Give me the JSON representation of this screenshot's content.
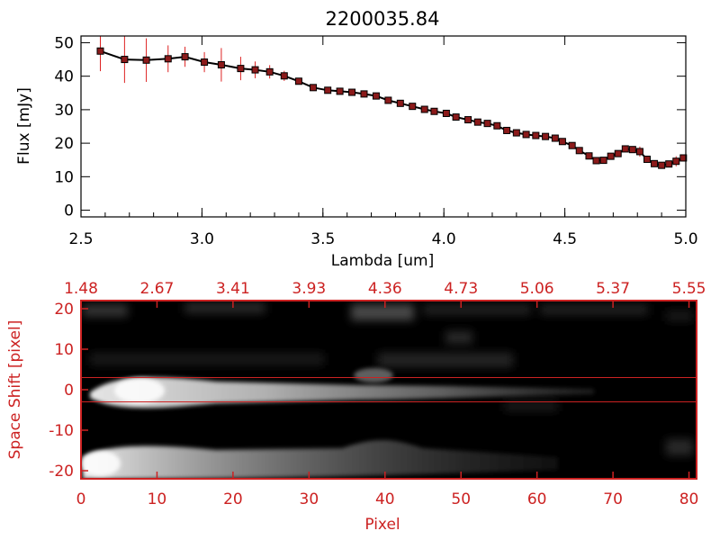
{
  "colors": {
    "spectrum_line": "#000000",
    "marker_fill": "#8b1a1a",
    "error_bar": "#dd2222",
    "image_frame": "#cc2222",
    "image_axis_text": "#cc2222",
    "image_background": "#000000"
  },
  "chart_data": [
    {
      "type": "line",
      "title": "2200035.84",
      "xlabel": "Lambda [um]",
      "ylabel": "Flux [mJy]",
      "xlim": [
        2.5,
        5.0
      ],
      "ylim": [
        -2,
        52
      ],
      "xticks": [
        2.5,
        3.0,
        3.5,
        4.0,
        4.5,
        5.0
      ],
      "xtick_labels": [
        "2.5",
        "3.0",
        "3.5",
        "4.0",
        "4.5",
        "5.0"
      ],
      "yticks": [
        0,
        10,
        20,
        30,
        40,
        50
      ],
      "ytick_labels": [
        "0",
        "10",
        "20",
        "30",
        "40",
        "50"
      ],
      "grid": false,
      "series": [
        {
          "x": [
            2.58,
            2.68,
            2.77,
            2.86,
            2.93,
            3.01,
            3.08,
            3.16,
            3.22,
            3.28,
            3.34,
            3.4,
            3.46,
            3.52,
            3.57,
            3.62,
            3.67,
            3.72,
            3.77,
            3.82,
            3.87,
            3.92,
            3.96,
            4.01,
            4.05,
            4.1,
            4.14,
            4.18,
            4.22,
            4.26,
            4.3,
            4.34,
            4.38,
            4.42,
            4.46,
            4.49,
            4.53,
            4.56,
            4.6,
            4.63,
            4.66,
            4.69,
            4.72,
            4.75,
            4.78,
            4.81,
            4.84,
            4.87,
            4.9,
            4.93,
            4.96,
            4.99
          ],
          "y": [
            47.5,
            45.0,
            44.8,
            45.2,
            45.8,
            44.2,
            43.4,
            42.3,
            41.9,
            41.3,
            40.1,
            38.5,
            36.6,
            35.8,
            35.5,
            35.2,
            34.7,
            34.1,
            32.8,
            31.9,
            31.0,
            30.1,
            29.5,
            28.9,
            27.8,
            27.0,
            26.3,
            25.9,
            25.2,
            23.8,
            23.1,
            22.6,
            22.3,
            22.0,
            21.5,
            20.5,
            19.3,
            17.8,
            16.2,
            14.8,
            14.9,
            16.1,
            16.9,
            18.3,
            18.1,
            17.5,
            15.2,
            13.9,
            13.4,
            13.8,
            14.6,
            15.6
          ],
          "yerr": [
            6.0,
            7.0,
            6.5,
            4.0,
            3.0,
            3.0,
            5.0,
            3.5,
            2.5,
            2.0,
            1.5,
            1.0,
            0.8,
            0.8,
            0.8,
            0.8,
            0.8,
            0.8,
            0.8,
            0.8,
            0.8,
            0.8,
            0.8,
            0.8,
            0.8,
            0.8,
            0.8,
            0.8,
            0.8,
            0.8,
            0.8,
            0.8,
            0.8,
            0.8,
            0.8,
            0.8,
            0.8,
            0.8,
            0.8,
            0.8,
            0.8,
            0.8,
            0.8,
            0.8,
            0.8,
            1.5,
            1.0,
            1.0,
            0.8,
            0.8,
            1.5,
            0.8
          ]
        }
      ]
    },
    {
      "type": "heatmap",
      "xlabel": "Pixel",
      "ylabel": "Space Shift [pixel]",
      "xlim": [
        0,
        81
      ],
      "ylim": [
        -22,
        22
      ],
      "xticks": [
        0,
        10,
        20,
        30,
        40,
        50,
        60,
        70,
        80
      ],
      "xtick_labels": [
        "0",
        "10",
        "20",
        "30",
        "40",
        "50",
        "60",
        "70",
        "80"
      ],
      "yticks": [
        -20,
        -10,
        0,
        10,
        20
      ],
      "ytick_labels": [
        "-20",
        "-10",
        "0",
        "10",
        "20"
      ],
      "top_xticks": [
        0,
        10,
        20,
        30,
        40,
        50,
        60,
        70,
        80
      ],
      "top_xtick_labels": [
        "1.48",
        "2.67",
        "3.41",
        "3.93",
        "4.36",
        "4.73",
        "5.06",
        "5.37",
        "5.55"
      ],
      "extraction_window": [
        -3,
        3
      ],
      "grid": false
    }
  ]
}
